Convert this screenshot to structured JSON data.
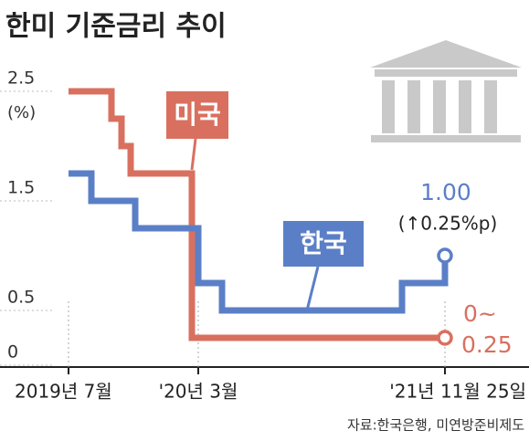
{
  "chart_data": {
    "type": "step-line",
    "title": "한미 기준금리 추이",
    "y_unit": "(%)",
    "categories": [
      "2019년 7월",
      null,
      null,
      null,
      null,
      null,
      null,
      "'20년 3월",
      null,
      null,
      "'21년 11월 25일"
    ],
    "series": [
      {
        "name": "미국",
        "color": "#d9705f",
        "values": [
          2.5,
          2.5,
          2.25,
          2.0,
          1.75,
          1.75,
          0.25,
          0.25,
          0.25,
          0.25,
          0.25
        ]
      },
      {
        "name": "한국",
        "color": "#5b7fc7",
        "values": [
          1.75,
          1.5,
          1.5,
          1.5,
          1.5,
          1.25,
          1.25,
          0.75,
          0.5,
          0.75,
          1.0
        ],
        "value_labels": [
          null,
          null,
          null,
          null,
          null,
          null,
          null,
          null,
          null,
          null,
          "1.00"
        ]
      }
    ],
    "annotations": [
      "(↑0.25%p)",
      "0~",
      "0.25"
    ],
    "ylim": [
      0,
      2.5
    ],
    "yticks": [
      0,
      0.5,
      1.5,
      2.5
    ],
    "grid": true,
    "source": "자료:한국은행, 미연방준비제도"
  }
}
